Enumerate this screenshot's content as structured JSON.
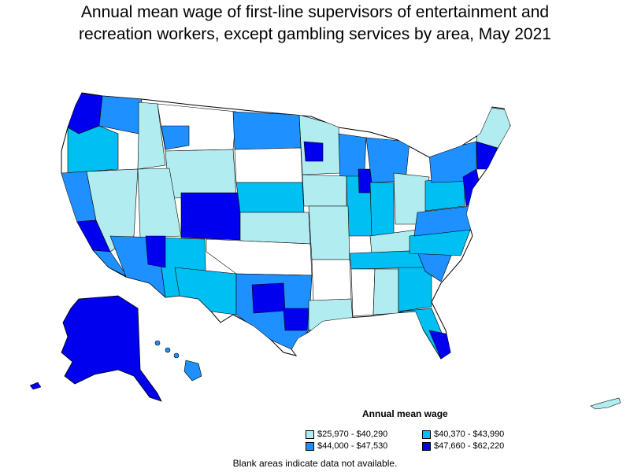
{
  "title": {
    "line1": "Annual mean wage of first-line supervisors of entertainment and",
    "line2": "recreation workers, except gambling services by area, May 2021"
  },
  "legend": {
    "title": "Annual mean wage",
    "items": [
      {
        "label": "$25,970 - $40,290",
        "color": "#b0ecf0"
      },
      {
        "label": "$40,370 - $43,990",
        "color": "#00bff3"
      },
      {
        "label": "$44,000 - $47,530",
        "color": "#1e90ff"
      },
      {
        "label": "$47,660 - $62,220",
        "color": "#0000ee"
      }
    ]
  },
  "note": "Blank areas indicate data not available."
}
